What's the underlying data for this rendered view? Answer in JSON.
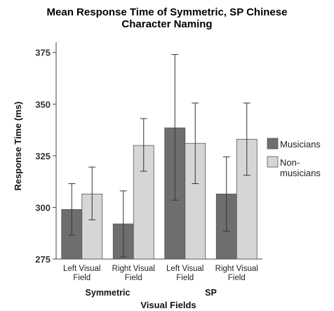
{
  "chart_data": {
    "type": "bar",
    "title_lines": [
      "Mean Response Time of Symmetric, SP Chinese",
      "Character Naming"
    ],
    "xlabel": "Visual Fields",
    "ylabel": "Response Time (ms)",
    "ylim": [
      275,
      380
    ],
    "yticks": [
      275,
      300,
      325,
      350,
      375
    ],
    "grid": false,
    "legend_position": "right",
    "categories": [
      {
        "line1": "Left Visual",
        "line2": "Field"
      },
      {
        "line1": "Right Visual",
        "line2": "Field"
      },
      {
        "line1": "Left Visual",
        "line2": "Field"
      },
      {
        "line1": "Right Visual",
        "line2": "Field"
      }
    ],
    "groups": [
      {
        "label": "Symmetric",
        "categories": [
          0,
          1
        ]
      },
      {
        "label": "SP",
        "categories": [
          2,
          3
        ]
      }
    ],
    "series": [
      {
        "name": "Musicians",
        "legend_lines": [
          "Musicians"
        ],
        "color": "#6e6e6e",
        "values": [
          299,
          292,
          338.5,
          306.5
        ],
        "error_low": [
          286.5,
          276,
          303.5,
          288.5
        ],
        "error_high": [
          311.5,
          308,
          374,
          324.5
        ]
      },
      {
        "name": "Non-musicians",
        "legend_lines": [
          "Non-",
          "musicians"
        ],
        "color": "#d6d6d6",
        "values": [
          306.5,
          330,
          331,
          333
        ],
        "error_low": [
          294,
          317.5,
          311.5,
          315.5
        ],
        "error_high": [
          319.5,
          343,
          350.5,
          350.5
        ]
      }
    ]
  }
}
